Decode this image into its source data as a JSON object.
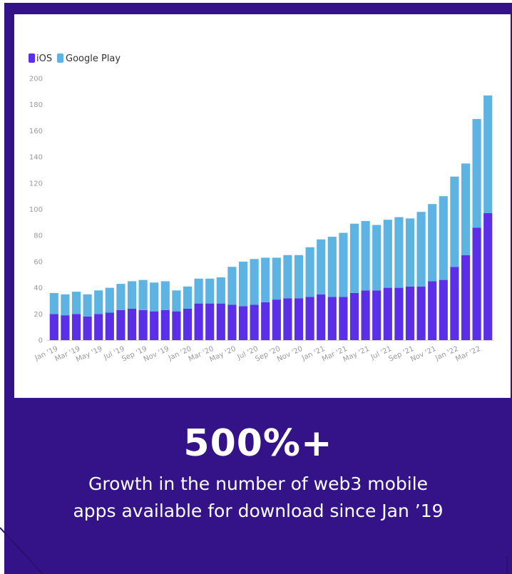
{
  "stat": {
    "headline": "500%+",
    "caption_line1": "Growth in the number of web3 mobile",
    "caption_line2": "apps available for download since Jan ’19"
  },
  "colors": {
    "background": "#341389",
    "ios": "#5b2ee8",
    "google_play": "#5db4e3"
  },
  "chart_data": {
    "type": "bar",
    "stacked": true,
    "title": "",
    "xlabel": "",
    "ylabel": "",
    "ylim": [
      0,
      200
    ],
    "yticks": [
      0,
      20,
      40,
      60,
      80,
      100,
      120,
      140,
      160,
      180,
      200
    ],
    "grid": false,
    "legend": "top-left",
    "categories": [
      "Jan '19",
      "Feb '19",
      "Mar '19",
      "Apr '19",
      "May '19",
      "Jun '19",
      "Jul '19",
      "Aug '19",
      "Sep '19",
      "Oct '19",
      "Nov '19",
      "Dec '19",
      "Jan '20",
      "Feb '20",
      "Mar '20",
      "Apr '20",
      "May '20",
      "Jun '20",
      "Jul '20",
      "Aug '20",
      "Sep '20",
      "Oct '20",
      "Nov '20",
      "Dec '20",
      "Jan '21",
      "Feb '21",
      "Mar '21",
      "Apr '21",
      "May '21",
      "Jun '21",
      "Jul '21",
      "Aug '21",
      "Sep '21",
      "Oct '21",
      "Nov '21",
      "Dec '21",
      "Jan '22",
      "Feb '22",
      "Mar '22",
      "Apr '22"
    ],
    "tick_labels": [
      "Jan '19",
      "Mar '19",
      "May '19",
      "Jul '19",
      "Sep '19",
      "Nov '19",
      "Jan '20",
      "Mar '20",
      "May '20",
      "Jul '20",
      "Sep '20",
      "Nov '20",
      "Jan '21",
      "Mar '21",
      "May '21",
      "Jul '21",
      "Sep '21",
      "Nov '21",
      "Jan '22",
      "Mar '22"
    ],
    "series": [
      {
        "name": "iOS",
        "color": "#5b2ee8",
        "values": [
          20,
          19,
          20,
          18,
          20,
          21,
          23,
          24,
          23,
          22,
          23,
          22,
          24,
          28,
          28,
          28,
          27,
          26,
          27,
          29,
          31,
          32,
          32,
          33,
          35,
          33,
          33,
          36,
          38,
          38,
          40,
          40,
          41,
          41,
          45,
          46,
          56,
          65,
          86,
          97
        ]
      },
      {
        "name": "Google Play",
        "color": "#5db4e3",
        "values": [
          16,
          16,
          17,
          17,
          18,
          19,
          20,
          21,
          23,
          22,
          22,
          16,
          17,
          19,
          19,
          20,
          29,
          34,
          35,
          34,
          32,
          33,
          33,
          38,
          42,
          46,
          49,
          53,
          53,
          50,
          52,
          54,
          52,
          57,
          59,
          64,
          69,
          70,
          83,
          90
        ]
      }
    ]
  }
}
